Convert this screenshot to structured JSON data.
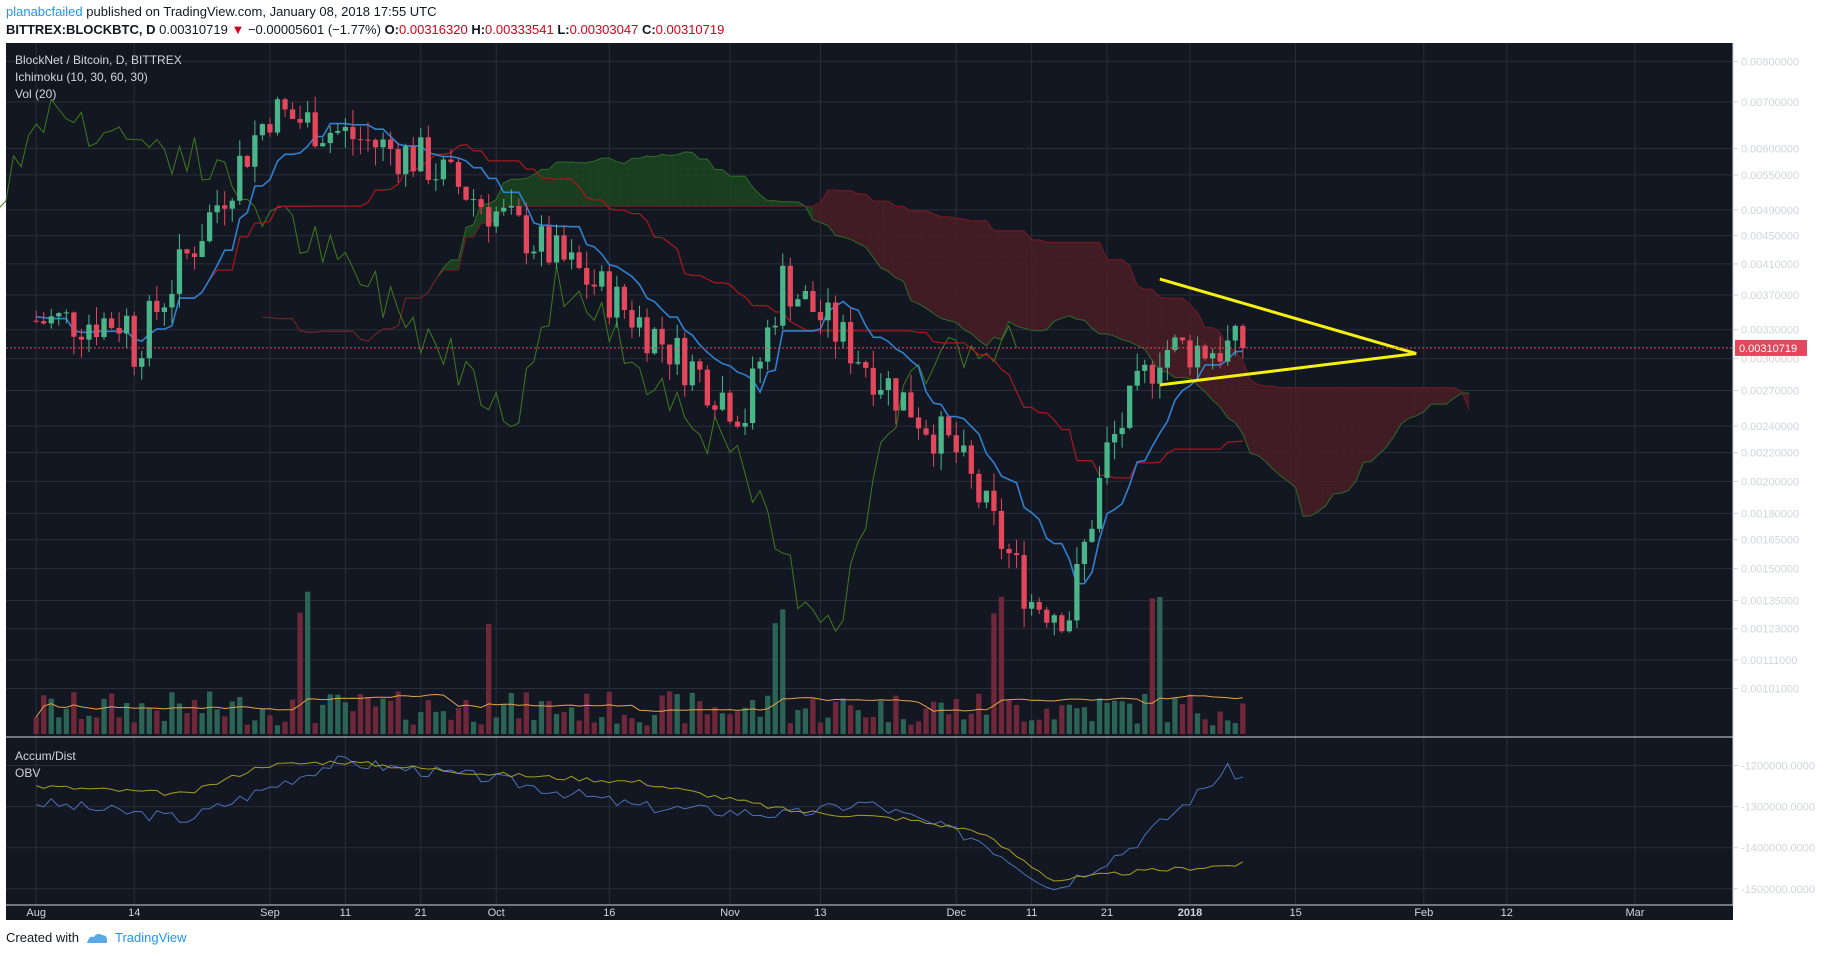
{
  "header": {
    "author": "planabcfailed",
    "published_text": "published on TradingView.com, January 08, 2018 17:55 UTC",
    "symbol": "BITTREX:BLOCKBTC, D",
    "last": "0.00310719",
    "change_arrow": "▼",
    "change": "−0.00005601 (−1.77%)",
    "o_label": "O:",
    "o_value": "0.00316320",
    "h_label": "H:",
    "h_value": "0.00333541",
    "l_label": "L:",
    "l_value": "0.00303047",
    "c_label": "C:",
    "c_value": "0.00310719"
  },
  "legend": {
    "title": "BlockNet / Bitcoin, D, BITTREX",
    "ichimoku": "Ichimoku (10, 30, 60, 30)",
    "vol": "Vol (20)"
  },
  "lower_legend": {
    "accum": "Accum/Dist",
    "obv": "OBV"
  },
  "price_axis_labels": [
    "0.00800000",
    "0.00700000",
    "0.00600000",
    "0.00550000",
    "0.00490000",
    "0.00450000",
    "0.00410000",
    "0.00370000",
    "0.00330000",
    "0.00300000",
    "0.00270000",
    "0.00240000",
    "0.00220000",
    "0.00200000",
    "0.00180000",
    "0.00165000",
    "0.00150000",
    "0.00135000",
    "0.00123000",
    "0.00111000",
    "0.00101000"
  ],
  "current_price_label": "0.00310719",
  "lower_axis_labels": [
    "-1200000.0000",
    "-1300000.0000",
    "-1400000.0000",
    "-1500000.0000"
  ],
  "time_axis_labels": [
    "Aug",
    "14",
    "Sep",
    "11",
    "21",
    "Oct",
    "16",
    "Nov",
    "13",
    "Dec",
    "11",
    "21",
    "2018",
    "15",
    "Feb",
    "12",
    "Mar"
  ],
  "colors": {
    "background": "#131722",
    "grid": "#2a2e39",
    "up": "#4bb58a",
    "down": "#e2475c",
    "tenkan": "#2f80d0",
    "kijun": "#a01a1a",
    "chikou": "#3e7a1e",
    "cloud_bull": "#1b4620",
    "cloud_bear": "#4a1d24",
    "triangle": "#f5f00f",
    "obv": "#4a72b8",
    "accum": "#a3a023",
    "vol_ma": "#e3a24a",
    "price_line": "#e2475c"
  },
  "footer": {
    "created_with": "Created with",
    "brand": "TradingView"
  },
  "chart_data": {
    "type": "candlestick",
    "title": "BlockNet / Bitcoin, D, BITTREX",
    "y_scale": "log",
    "ylim": [
      0.00095,
      0.0085
    ],
    "x_range": [
      "2017-08-01",
      "2018-03-08"
    ],
    "last_close": 0.00310719,
    "key_points": [
      {
        "date": "2017-08-14",
        "close": 0.0031
      },
      {
        "date": "2017-09-01",
        "close": 0.0068
      },
      {
        "date": "2017-09-21",
        "close": 0.0058
      },
      {
        "date": "2017-10-16",
        "close": 0.0037
      },
      {
        "date": "2017-11-03",
        "close": 0.0025
      },
      {
        "date": "2017-11-08",
        "close": 0.0039
      },
      {
        "date": "2017-12-01",
        "close": 0.0022
      },
      {
        "date": "2017-12-11",
        "close": 0.00135
      },
      {
        "date": "2017-12-16",
        "close": 0.0013
      },
      {
        "date": "2017-12-21",
        "close": 0.0022
      },
      {
        "date": "2017-12-28",
        "close": 0.0031
      },
      {
        "date": "2018-01-08",
        "close": 0.00310719
      }
    ],
    "triangle_annotation": {
      "upper": [
        {
          "date": "2017-12-28",
          "price": 0.0039
        },
        {
          "date": "2018-01-31",
          "price": 0.00305
        }
      ],
      "lower": [
        {
          "date": "2017-12-28",
          "price": 0.00275
        },
        {
          "date": "2018-01-31",
          "price": 0.00305
        }
      ]
    },
    "lower_pane_ylim": [
      -1520000,
      -1150000
    ]
  }
}
